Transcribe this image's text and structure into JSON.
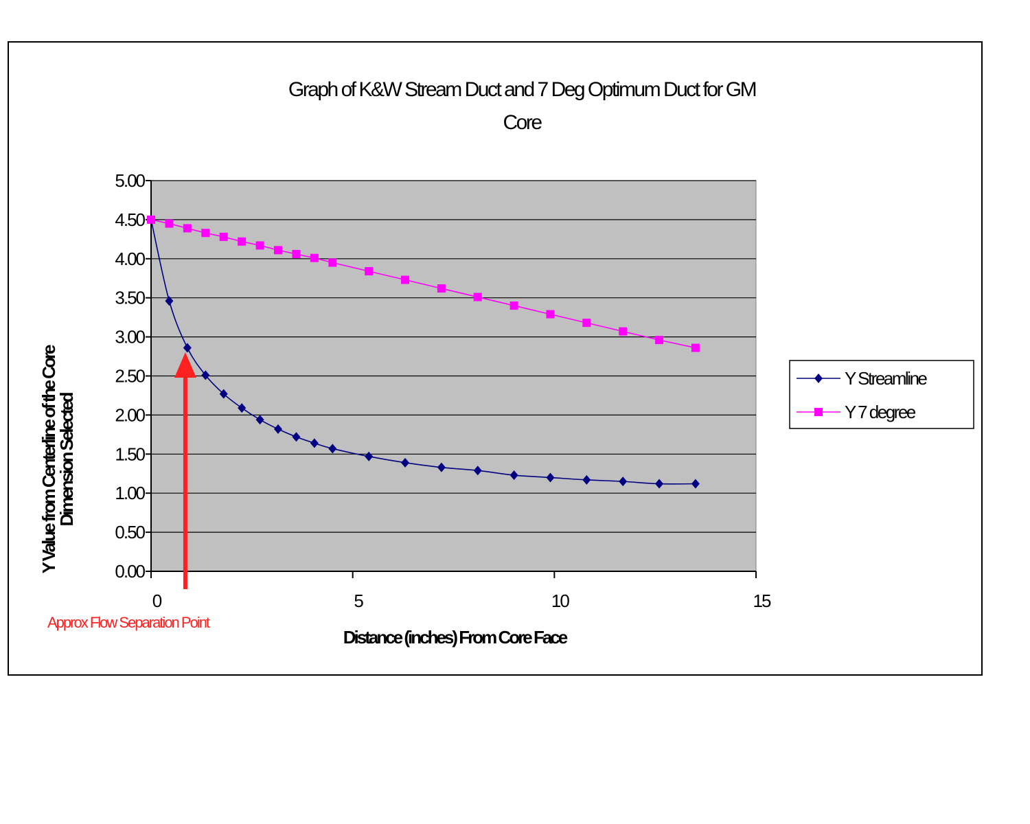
{
  "chart_data": {
    "type": "line",
    "title_lines": [
      "Graph of K&W Stream Duct and 7 Deg Optimum Duct for GM",
      "Core"
    ],
    "xlabel": "Distance (inches) From Core Face",
    "ylabel_lines": [
      "Y Value from Centerline of the Core",
      "Dimension Selected"
    ],
    "xlim": [
      0,
      15
    ],
    "ylim": [
      0,
      5
    ],
    "x_ticks": [
      "0",
      "5",
      "10",
      "15"
    ],
    "x_tick_values": [
      0,
      5,
      10,
      15
    ],
    "y_ticks": [
      "0.00",
      "0.50",
      "1.00",
      "1.50",
      "2.00",
      "2.50",
      "3.00",
      "3.50",
      "4.00",
      "4.50",
      "5.00"
    ],
    "y_tick_values": [
      0,
      0.5,
      1,
      1.5,
      2,
      2.5,
      3,
      3.5,
      4,
      4.5,
      5
    ],
    "grid": "horizontal",
    "plot_background": "#c0c0c0",
    "legend_position": "right",
    "series": [
      {
        "name": "Y Streamline",
        "color": "#000080",
        "marker": "diamond",
        "smooth": true,
        "x": [
          0,
          0.45,
          0.9,
          1.35,
          1.8,
          2.25,
          2.7,
          3.15,
          3.6,
          4.05,
          4.5,
          5.4,
          6.3,
          7.2,
          8.1,
          9.0,
          9.9,
          10.8,
          11.7,
          12.6,
          13.5
        ],
        "y": [
          4.5,
          3.46,
          2.86,
          2.51,
          2.27,
          2.09,
          1.94,
          1.82,
          1.72,
          1.64,
          1.57,
          1.47,
          1.39,
          1.33,
          1.29,
          1.23,
          1.2,
          1.17,
          1.15,
          1.12,
          1.12
        ]
      },
      {
        "name": "Y 7 degree",
        "color": "#ff00ff",
        "marker": "square",
        "smooth": false,
        "x": [
          0,
          0.45,
          0.9,
          1.35,
          1.8,
          2.25,
          2.7,
          3.15,
          3.6,
          4.05,
          4.5,
          5.4,
          6.3,
          7.2,
          8.1,
          9.0,
          9.9,
          10.8,
          11.7,
          12.6,
          13.5
        ],
        "y": [
          4.5,
          4.45,
          4.39,
          4.33,
          4.28,
          4.22,
          4.17,
          4.11,
          4.06,
          4.01,
          3.95,
          3.84,
          3.73,
          3.62,
          3.51,
          3.4,
          3.29,
          3.18,
          3.07,
          2.96,
          2.86
        ]
      }
    ],
    "annotation": {
      "text": "Approx Flow Separation Point",
      "x": 0.85,
      "color": "#ff2020"
    }
  }
}
